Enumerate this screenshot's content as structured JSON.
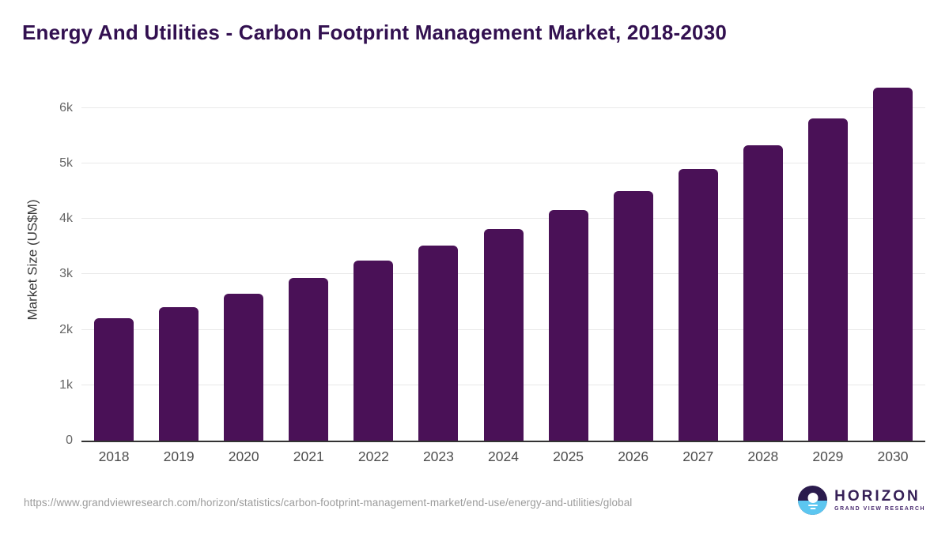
{
  "header": {
    "title": "Energy And Utilities - Carbon Footprint Management Market, 2018-2030"
  },
  "chart_data": {
    "type": "bar",
    "title": "Energy And Utilities - Carbon Footprint Management Market, 2018-2030",
    "categories": [
      "2018",
      "2019",
      "2020",
      "2021",
      "2022",
      "2023",
      "2024",
      "2025",
      "2026",
      "2027",
      "2028",
      "2029",
      "2030"
    ],
    "values": [
      2200,
      2410,
      2650,
      2935,
      3250,
      3520,
      3820,
      4150,
      4500,
      4900,
      5330,
      5815,
      6360
    ],
    "xlabel": "",
    "ylabel": "Market Size (US$M)",
    "ylim": [
      0,
      6520
    ],
    "yticks": [
      {
        "value": 0,
        "label": "0"
      },
      {
        "value": 1000,
        "label": "1k"
      },
      {
        "value": 2000,
        "label": "2k"
      },
      {
        "value": 3000,
        "label": "3k"
      },
      {
        "value": 4000,
        "label": "4k"
      },
      {
        "value": 5000,
        "label": "5k"
      },
      {
        "value": 6000,
        "label": "6k"
      }
    ],
    "grid": true,
    "legend": "none",
    "bar_color": "#4a1157"
  },
  "footer": {
    "source_url": "https://www.grandviewresearch.com/horizon/statistics/carbon-footprint-management-market/end-use/energy-and-utilities/global",
    "logo": {
      "brand": "HORIZON",
      "tagline": "GRAND VIEW RESEARCH"
    }
  },
  "colors": {
    "title_purple": "#321050",
    "bar_purple": "#4a1157",
    "logo_purple": "#2b1b4d",
    "logo_blue": "#5cc6f0",
    "gridline_gray": "#e9e9e9",
    "axis_dark": "#333333",
    "ytick_gray": "#666666",
    "xtick_gray": "#4d4d4d",
    "url_gray": "#9b9b9b"
  }
}
